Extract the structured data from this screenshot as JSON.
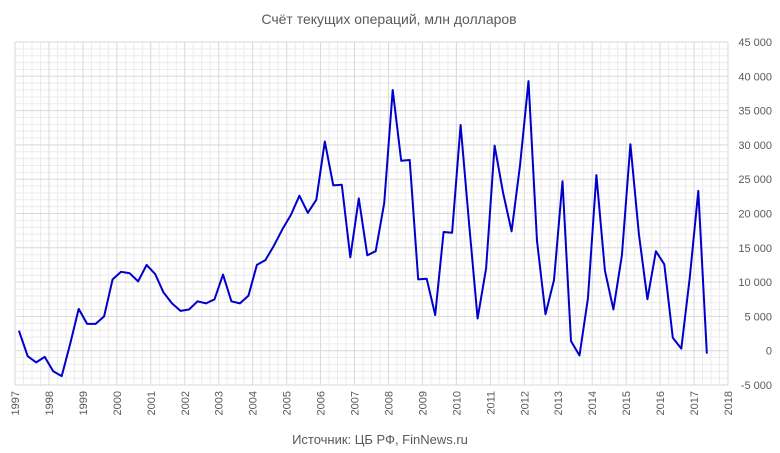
{
  "chart_data": {
    "type": "line",
    "title": "Счёт текущих операций, млн долларов",
    "source": "Источник: ЦБ РФ, FinNews.ru",
    "xlim": [
      1997,
      2018
    ],
    "ylim": [
      -5000,
      45000
    ],
    "x_ticks": [
      1997,
      1998,
      1999,
      2000,
      2001,
      2002,
      2003,
      2004,
      2005,
      2006,
      2007,
      2008,
      2009,
      2010,
      2011,
      2012,
      2013,
      2014,
      2015,
      2016,
      2017,
      2018
    ],
    "y_ticks": [
      -5000,
      0,
      5000,
      10000,
      15000,
      20000,
      25000,
      30000,
      35000,
      40000,
      45000
    ],
    "y_tick_labels": [
      "-5 000",
      "0",
      "5 000",
      "10 000",
      "15 000",
      "20 000",
      "25 000",
      "30 000",
      "35 000",
      "40 000",
      "45 000"
    ],
    "grid": true,
    "y_axis_position": "right",
    "series": [
      {
        "color": "#0000cc",
        "x": [
          1997.125,
          1997.375,
          1997.625,
          1997.875,
          1998.125,
          1998.375,
          1998.625,
          1998.875,
          1999.125,
          1999.375,
          1999.625,
          1999.875,
          2000.125,
          2000.375,
          2000.625,
          2000.875,
          2001.125,
          2001.375,
          2001.625,
          2001.875,
          2002.125,
          2002.375,
          2002.625,
          2002.875,
          2003.125,
          2003.375,
          2003.625,
          2003.875,
          2004.125,
          2004.375,
          2004.625,
          2004.875,
          2005.125,
          2005.375,
          2005.625,
          2005.875,
          2006.125,
          2006.375,
          2006.625,
          2006.875,
          2007.125,
          2007.375,
          2007.625,
          2007.875,
          2008.125,
          2008.375,
          2008.625,
          2008.875,
          2009.125,
          2009.375,
          2009.625,
          2009.875,
          2010.125,
          2010.375,
          2010.625,
          2010.875,
          2011.125,
          2011.375,
          2011.625,
          2011.875,
          2012.125,
          2012.375,
          2012.625,
          2012.875,
          2013.125,
          2013.375,
          2013.625,
          2013.875,
          2014.125,
          2014.375,
          2014.625,
          2014.875,
          2015.125,
          2015.375,
          2015.625,
          2015.875,
          2016.125,
          2016.375,
          2016.625,
          2016.875,
          2017.125,
          2017.375
        ],
        "values": [
          2800,
          -800,
          -1700,
          -900,
          -3000,
          -3700,
          1000,
          6100,
          3900,
          3900,
          5000,
          10400,
          11500,
          11300,
          10100,
          12500,
          11200,
          8500,
          6900,
          5800,
          6000,
          7200,
          6900,
          7500,
          11100,
          7200,
          6900,
          8000,
          12500,
          13200,
          15300,
          17700,
          19800,
          22600,
          20100,
          22000,
          30500,
          24100,
          24200,
          13600,
          22200,
          13900,
          14500,
          21500,
          38000,
          27700,
          27800,
          10400,
          10500,
          5200,
          17300,
          17200,
          32900,
          18500,
          4700,
          12000,
          29900,
          23000,
          17400,
          27000,
          39300,
          16000,
          5300,
          10300,
          24700,
          1400,
          -700,
          7600,
          25600,
          11700,
          6000,
          13900,
          30100,
          17000,
          7500,
          14500,
          12600,
          1900,
          300,
          10700,
          23300,
          -300
        ]
      }
    ]
  }
}
